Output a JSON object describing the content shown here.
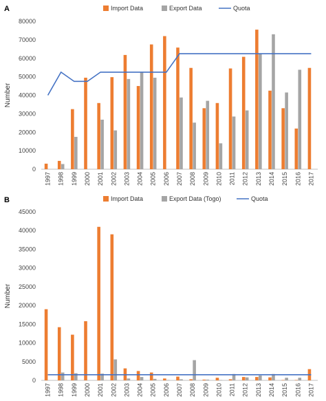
{
  "colors": {
    "import": "#ED7D31",
    "export": "#A5A5A5",
    "quota": "#4472C4",
    "axis": "#BFBFBF",
    "text": "#444444"
  },
  "chart_data": [
    {
      "type": "bar",
      "panel_label": "A",
      "ylabel": "Number",
      "xlabel": "",
      "ylim": [
        0,
        80000
      ],
      "yticks": [
        "0",
        "10000",
        "20000",
        "30000",
        "40000",
        "50000",
        "60000",
        "70000",
        "80000"
      ],
      "ytick_values": [
        0,
        10000,
        20000,
        30000,
        40000,
        50000,
        60000,
        70000,
        80000
      ],
      "grid": false,
      "legend_position": "top",
      "categories": [
        "1997",
        "1998",
        "1999",
        "2000",
        "2001",
        "2002",
        "2003",
        "2004",
        "2005",
        "2006",
        "2007",
        "2008",
        "2009",
        "2010",
        "2011",
        "2012",
        "2013",
        "2014",
        "2015",
        "2016",
        "2017"
      ],
      "series": [
        {
          "name": "Import Data",
          "kind": "bar",
          "values": [
            3000,
            4500,
            32500,
            49500,
            35800,
            49800,
            61800,
            45000,
            67500,
            72000,
            65800,
            54800,
            33000,
            35800,
            54500,
            60800,
            75500,
            42500,
            33000,
            22000,
            54800
          ]
        },
        {
          "name": "Export Data",
          "kind": "bar",
          "values": [
            0,
            2800,
            17500,
            0,
            26800,
            21000,
            48800,
            52500,
            49500,
            0,
            38800,
            25200,
            37000,
            14000,
            28500,
            31800,
            62500,
            73000,
            41500,
            53800,
            0
          ]
        },
        {
          "name": "Quota",
          "kind": "line",
          "values": [
            40000,
            52500,
            47500,
            47500,
            52500,
            52500,
            52500,
            52500,
            52500,
            52500,
            62500,
            62500,
            62500,
            62500,
            62500,
            62500,
            62500,
            62500,
            62500,
            62500,
            62500
          ]
        }
      ]
    },
    {
      "type": "bar",
      "panel_label": "B",
      "ylabel": "Number",
      "xlabel": "",
      "ylim": [
        0,
        45000
      ],
      "yticks": [
        "0",
        "5000",
        "10000",
        "15000",
        "20000",
        "25000",
        "30000",
        "35000",
        "40000",
        "45000"
      ],
      "ytick_values": [
        0,
        5000,
        10000,
        15000,
        20000,
        25000,
        30000,
        35000,
        40000,
        45000
      ],
      "grid": false,
      "legend_position": "top",
      "categories": [
        "1997",
        "1998",
        "1999",
        "2000",
        "2001",
        "2002",
        "2003",
        "2004",
        "2005",
        "2006",
        "2007",
        "2008",
        "2009",
        "2010",
        "2011",
        "2012",
        "2013",
        "2014",
        "2015",
        "2016",
        "2017"
      ],
      "series": [
        {
          "name": "Import Data",
          "kind": "bar",
          "values": [
            19000,
            14200,
            12200,
            15800,
            41000,
            39000,
            3200,
            2500,
            2100,
            500,
            1000,
            300,
            200,
            700,
            300,
            900,
            900,
            800,
            100,
            100,
            3000
          ]
        },
        {
          "name": "Export Data (Togo)",
          "kind": "bar",
          "values": [
            0,
            2100,
            1900,
            0,
            1800,
            5600,
            500,
            900,
            400,
            100,
            300,
            5400,
            200,
            100,
            1700,
            800,
            1300,
            1700,
            700,
            700,
            0
          ]
        },
        {
          "name": "Quota",
          "kind": "line",
          "values": [
            1500,
            1500,
            1500,
            1500,
            1500,
            1500,
            1500,
            1500,
            1500,
            1500,
            1500,
            1500,
            1500,
            1500,
            1500,
            1500,
            1500,
            1500,
            1500,
            1500,
            1500
          ]
        }
      ]
    }
  ]
}
